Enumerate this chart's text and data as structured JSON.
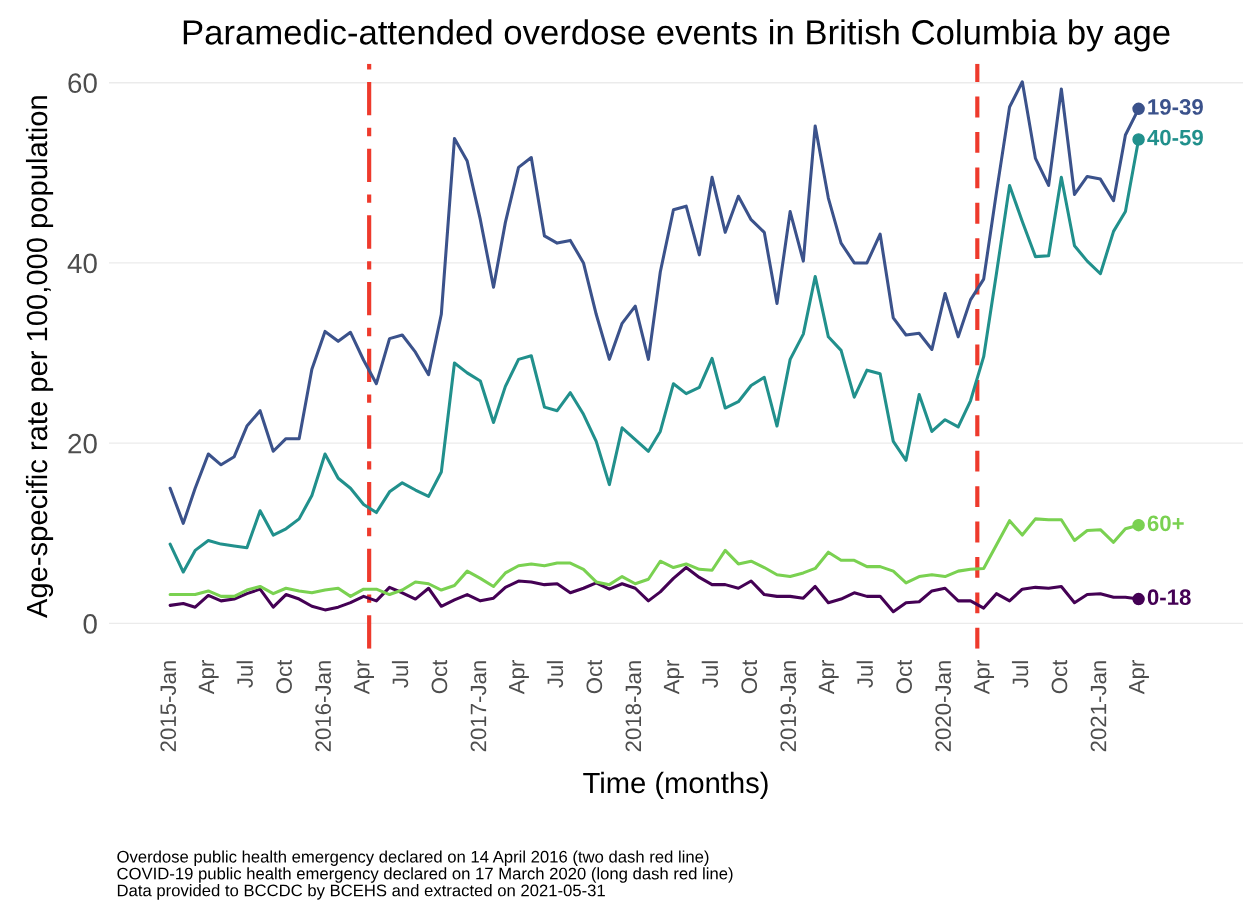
{
  "chart_data": {
    "type": "line",
    "title": "Paramedic-attended overdose events in British Columbia by age",
    "xlabel": "Time (months)",
    "ylabel": "Age-specific rate per 100,000 population",
    "x": [
      "2015-01",
      "2015-02",
      "2015-03",
      "2015-04",
      "2015-05",
      "2015-06",
      "2015-07",
      "2015-08",
      "2015-09",
      "2015-10",
      "2015-11",
      "2015-12",
      "2016-01",
      "2016-02",
      "2016-03",
      "2016-04",
      "2016-05",
      "2016-06",
      "2016-07",
      "2016-08",
      "2016-09",
      "2016-10",
      "2016-11",
      "2016-12",
      "2017-01",
      "2017-02",
      "2017-03",
      "2017-04",
      "2017-05",
      "2017-06",
      "2017-07",
      "2017-08",
      "2017-09",
      "2017-10",
      "2017-11",
      "2017-12",
      "2018-01",
      "2018-02",
      "2018-03",
      "2018-04",
      "2018-05",
      "2018-06",
      "2018-07",
      "2018-08",
      "2018-09",
      "2018-10",
      "2018-11",
      "2018-12",
      "2019-01",
      "2019-02",
      "2019-03",
      "2019-04",
      "2019-05",
      "2019-06",
      "2019-07",
      "2019-08",
      "2019-09",
      "2019-10",
      "2019-11",
      "2019-12",
      "2020-01",
      "2020-02",
      "2020-03",
      "2020-04",
      "2020-05",
      "2020-06",
      "2020-07",
      "2020-08",
      "2020-09",
      "2020-10",
      "2020-11",
      "2020-12",
      "2021-01",
      "2021-02",
      "2021-03",
      "2021-04"
    ],
    "series": [
      {
        "name": "0-18",
        "color": "#440154",
        "values": [
          2.0,
          2.2,
          1.8,
          3.1,
          2.5,
          2.7,
          3.3,
          3.8,
          1.8,
          3.2,
          2.7,
          1.9,
          1.5,
          1.8,
          2.3,
          3.0,
          2.5,
          4.0,
          3.4,
          2.7,
          3.9,
          1.9,
          2.6,
          3.2,
          2.5,
          2.8,
          4.0,
          4.7,
          4.6,
          4.3,
          4.4,
          3.4,
          3.9,
          4.5,
          3.8,
          4.4,
          3.9,
          2.5,
          3.5,
          5.0,
          6.2,
          5.1,
          4.3,
          4.3,
          3.9,
          4.7,
          3.2,
          3.0,
          3.0,
          2.8,
          4.1,
          2.3,
          2.7,
          3.4,
          3.0,
          3.0,
          1.3,
          2.3,
          2.4,
          3.6,
          3.9,
          2.5,
          2.5,
          1.7,
          3.3,
          2.5,
          3.8,
          4.0,
          3.9,
          4.1,
          2.3,
          3.2,
          3.3,
          2.9,
          2.9,
          2.7
        ]
      },
      {
        "name": "19-39",
        "color": "#3b528b",
        "values": [
          15.0,
          11.1,
          15.0,
          18.8,
          17.6,
          18.5,
          21.9,
          23.6,
          19.1,
          20.5,
          20.5,
          28.2,
          32.4,
          31.3,
          32.3,
          29.2,
          26.6,
          31.6,
          32.0,
          30.1,
          27.6,
          34.3,
          53.8,
          51.3,
          44.8,
          37.3,
          44.5,
          50.6,
          51.7,
          43.0,
          42.2,
          42.5,
          40.0,
          34.3,
          29.3,
          33.3,
          35.2,
          29.3,
          39.0,
          45.9,
          46.3,
          40.9,
          49.5,
          43.4,
          47.4,
          44.8,
          43.4,
          35.5,
          45.7,
          40.2,
          55.2,
          47.2,
          42.2,
          40.0,
          40.0,
          43.2,
          33.9,
          32.0,
          32.2,
          30.4,
          36.6,
          31.8,
          35.9,
          38.2,
          47.8,
          57.3,
          60.1,
          51.6,
          48.6,
          59.3,
          47.6,
          49.6,
          49.3,
          46.9,
          54.2,
          57.1
        ]
      },
      {
        "name": "40-59",
        "color": "#21908c",
        "values": [
          8.8,
          5.7,
          8.1,
          9.2,
          8.8,
          8.6,
          8.4,
          12.5,
          9.8,
          10.5,
          11.6,
          14.2,
          18.8,
          16.1,
          15.0,
          13.2,
          12.3,
          14.6,
          15.6,
          14.8,
          14.1,
          16.8,
          28.9,
          27.8,
          26.9,
          22.3,
          26.3,
          29.3,
          29.7,
          24.0,
          23.6,
          25.6,
          23.2,
          20.2,
          15.4,
          21.7,
          20.4,
          19.1,
          21.3,
          26.6,
          25.5,
          26.2,
          29.4,
          23.9,
          24.6,
          26.4,
          27.3,
          21.9,
          29.3,
          32.1,
          38.5,
          31.8,
          30.3,
          25.1,
          28.1,
          27.7,
          20.2,
          18.1,
          25.4,
          21.3,
          22.6,
          21.8,
          24.7,
          29.6,
          38.8,
          48.6,
          44.6,
          40.7,
          40.8,
          49.5,
          41.9,
          40.2,
          38.8,
          43.5,
          45.7,
          53.7
        ]
      },
      {
        "name": "60+",
        "color": "#7ad151",
        "values": [
          3.2,
          3.2,
          3.2,
          3.6,
          3.0,
          3.0,
          3.7,
          4.1,
          3.3,
          3.9,
          3.6,
          3.4,
          3.7,
          3.9,
          3.0,
          3.8,
          3.8,
          3.2,
          3.7,
          4.6,
          4.4,
          3.7,
          4.2,
          5.8,
          5.0,
          4.1,
          5.6,
          6.4,
          6.6,
          6.4,
          6.7,
          6.7,
          6.0,
          4.6,
          4.3,
          5.2,
          4.4,
          4.9,
          6.9,
          6.2,
          6.6,
          6.0,
          5.9,
          8.1,
          6.6,
          6.9,
          6.2,
          5.4,
          5.2,
          5.6,
          6.1,
          7.9,
          7.0,
          7.0,
          6.3,
          6.3,
          5.8,
          4.5,
          5.2,
          5.4,
          5.2,
          5.8,
          6.0,
          6.1,
          8.7,
          11.4,
          9.8,
          11.6,
          11.5,
          11.5,
          9.2,
          10.3,
          10.4,
          9.0,
          10.5,
          10.9
        ]
      }
    ],
    "xlim": [
      "2014-08-10",
      "2021-12-03"
    ],
    "xticks": [
      {
        "value": "2015-01",
        "label": "2015-Jan"
      },
      {
        "value": "2015-04",
        "label": "Apr"
      },
      {
        "value": "2015-07",
        "label": "Jul"
      },
      {
        "value": "2015-10",
        "label": "Oct"
      },
      {
        "value": "2016-01",
        "label": "2016-Jan"
      },
      {
        "value": "2016-04",
        "label": "Apr"
      },
      {
        "value": "2016-07",
        "label": "Jul"
      },
      {
        "value": "2016-10",
        "label": "Oct"
      },
      {
        "value": "2017-01",
        "label": "2017-Jan"
      },
      {
        "value": "2017-04",
        "label": "Apr"
      },
      {
        "value": "2017-07",
        "label": "Jul"
      },
      {
        "value": "2017-10",
        "label": "Oct"
      },
      {
        "value": "2018-01",
        "label": "2018-Jan"
      },
      {
        "value": "2018-04",
        "label": "Apr"
      },
      {
        "value": "2018-07",
        "label": "Jul"
      },
      {
        "value": "2018-10",
        "label": "Oct"
      },
      {
        "value": "2019-01",
        "label": "2019-Jan"
      },
      {
        "value": "2019-04",
        "label": "Apr"
      },
      {
        "value": "2019-07",
        "label": "Jul"
      },
      {
        "value": "2019-10",
        "label": "Oct"
      },
      {
        "value": "2020-01",
        "label": "2020-Jan"
      },
      {
        "value": "2020-04",
        "label": "Apr"
      },
      {
        "value": "2020-07",
        "label": "Jul"
      },
      {
        "value": "2020-10",
        "label": "Oct"
      },
      {
        "value": "2021-01",
        "label": "2021-Jan"
      },
      {
        "value": "2021-04",
        "label": "Apr"
      }
    ],
    "ylim": [
      -2.8,
      62.1
    ],
    "yticks": [
      0,
      20,
      40,
      60
    ],
    "grid": "y",
    "legend": false,
    "ref_lines": [
      {
        "axis": "x",
        "value": "2016-04-14",
        "color": "#ee3a2c",
        "line_style": "dashdot"
      },
      {
        "axis": "x",
        "value": "2020-03-17",
        "color": "#ee3a2c",
        "line_style": "dashed"
      }
    ],
    "annotations": [
      "Overdose public health emergency declared on 14 April 2016 (two dash red line)",
      "COVID-19 public health emergency declared on 17 March 2020 (long dash red line)",
      "Data provided to BCCDC by BCEHS and extracted on 2021-05-31"
    ]
  }
}
